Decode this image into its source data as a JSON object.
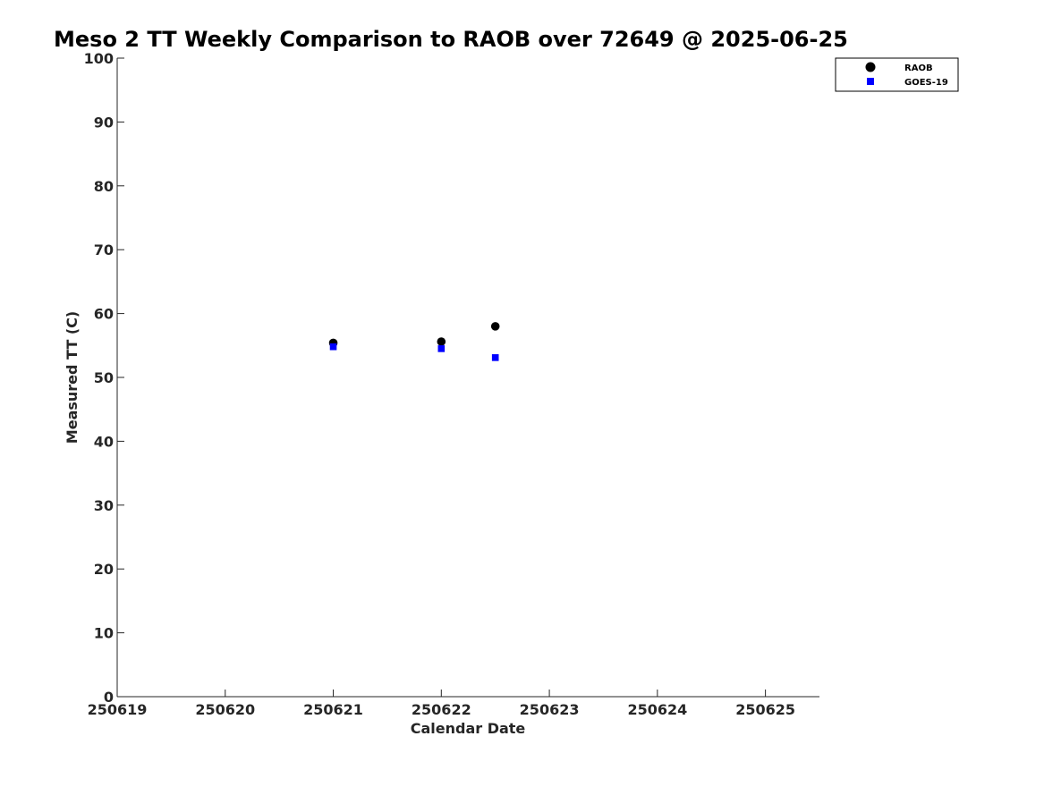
{
  "chart_data": {
    "type": "scatter",
    "title": "Meso 2 TT Weekly Comparison to RAOB over 72649 @ 2025-06-25",
    "xlabel": "Calendar Date",
    "ylabel": "Measured TT (C)",
    "xlim": [
      250619,
      250625.5
    ],
    "ylim": [
      0,
      100
    ],
    "xticks": [
      250619,
      250620,
      250621,
      250622,
      250623,
      250624,
      250625
    ],
    "xtick_labels": [
      "250619",
      "250620",
      "250621",
      "250622",
      "250623",
      "250624",
      "250625"
    ],
    "yticks": [
      0,
      10,
      20,
      30,
      40,
      50,
      60,
      70,
      80,
      90,
      100
    ],
    "ytick_labels": [
      "0",
      "10",
      "20",
      "30",
      "40",
      "50",
      "60",
      "70",
      "80",
      "90",
      "100"
    ],
    "grid": false,
    "legend_position": "top-right",
    "series": [
      {
        "name": "RAOB",
        "marker": "circle",
        "color": "#000000",
        "x": [
          250621,
          250622,
          250622.5
        ],
        "y": [
          55.4,
          55.6,
          58.0
        ]
      },
      {
        "name": "GOES-19",
        "marker": "square",
        "color": "#0000ff",
        "x": [
          250621,
          250622,
          250622.5
        ],
        "y": [
          54.8,
          54.5,
          53.1
        ]
      }
    ]
  }
}
